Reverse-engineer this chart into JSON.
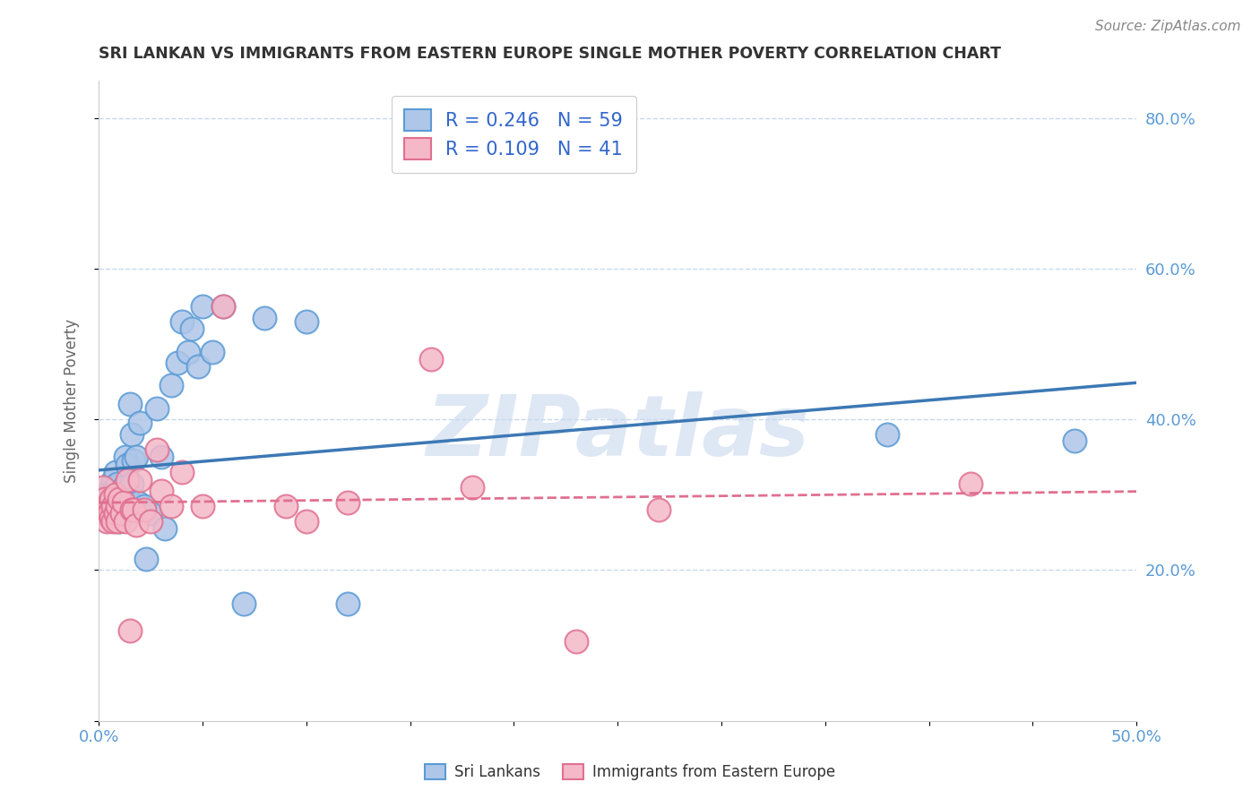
{
  "title": "SRI LANKAN VS IMMIGRANTS FROM EASTERN EUROPE SINGLE MOTHER POVERTY CORRELATION CHART",
  "source": "Source: ZipAtlas.com",
  "ylabel": "Single Mother Poverty",
  "xlim": [
    0.0,
    0.5
  ],
  "ylim": [
    0.0,
    0.85
  ],
  "xticks": [
    0.0,
    0.05,
    0.1,
    0.15,
    0.2,
    0.25,
    0.3,
    0.35,
    0.4,
    0.45,
    0.5
  ],
  "xticklabels_show": {
    "0.0": "0.0%",
    "0.50": "50.0%"
  },
  "yticks_right": [
    0.2,
    0.4,
    0.6,
    0.8
  ],
  "yticklabels_right": [
    "20.0%",
    "40.0%",
    "60.0%",
    "80.0%"
  ],
  "R_sri": 0.246,
  "N_sri": 59,
  "R_east": 0.109,
  "N_east": 41,
  "blue_fill": "#aec6e8",
  "blue_edge": "#5b9bd5",
  "pink_fill": "#f4b8c8",
  "pink_edge": "#e07090",
  "blue_line": "#3c78b4",
  "pink_line": "#e07090",
  "axis_label_color": "#5b9bd5",
  "watermark_color": "#c8d8ee",
  "sri_x": [
    0.002,
    0.003,
    0.003,
    0.004,
    0.004,
    0.005,
    0.005,
    0.005,
    0.006,
    0.006,
    0.006,
    0.007,
    0.007,
    0.007,
    0.008,
    0.008,
    0.008,
    0.009,
    0.009,
    0.01,
    0.01,
    0.01,
    0.011,
    0.011,
    0.012,
    0.012,
    0.013,
    0.013,
    0.014,
    0.014,
    0.015,
    0.015,
    0.016,
    0.016,
    0.017,
    0.018,
    0.019,
    0.02,
    0.022,
    0.023,
    0.025,
    0.028,
    0.03,
    0.032,
    0.035,
    0.038,
    0.04,
    0.043,
    0.045,
    0.048,
    0.05,
    0.055,
    0.06,
    0.07,
    0.08,
    0.1,
    0.12,
    0.38,
    0.47
  ],
  "sri_y": [
    0.285,
    0.29,
    0.275,
    0.295,
    0.28,
    0.3,
    0.285,
    0.27,
    0.31,
    0.295,
    0.275,
    0.32,
    0.305,
    0.28,
    0.33,
    0.31,
    0.285,
    0.315,
    0.29,
    0.295,
    0.28,
    0.265,
    0.3,
    0.285,
    0.31,
    0.29,
    0.35,
    0.295,
    0.34,
    0.305,
    0.42,
    0.28,
    0.38,
    0.315,
    0.345,
    0.35,
    0.29,
    0.395,
    0.285,
    0.215,
    0.275,
    0.415,
    0.35,
    0.255,
    0.445,
    0.475,
    0.53,
    0.49,
    0.52,
    0.47,
    0.55,
    0.49,
    0.55,
    0.155,
    0.535,
    0.53,
    0.155,
    0.38,
    0.372
  ],
  "east_x": [
    0.002,
    0.003,
    0.003,
    0.004,
    0.004,
    0.005,
    0.005,
    0.006,
    0.006,
    0.007,
    0.007,
    0.008,
    0.008,
    0.009,
    0.009,
    0.01,
    0.011,
    0.012,
    0.013,
    0.014,
    0.015,
    0.016,
    0.017,
    0.018,
    0.02,
    0.022,
    0.025,
    0.028,
    0.03,
    0.035,
    0.04,
    0.05,
    0.06,
    0.09,
    0.1,
    0.12,
    0.16,
    0.18,
    0.23,
    0.27,
    0.42
  ],
  "east_y": [
    0.31,
    0.295,
    0.275,
    0.285,
    0.265,
    0.29,
    0.275,
    0.295,
    0.27,
    0.285,
    0.265,
    0.3,
    0.275,
    0.285,
    0.265,
    0.295,
    0.275,
    0.29,
    0.265,
    0.32,
    0.12,
    0.28,
    0.28,
    0.26,
    0.32,
    0.28,
    0.265,
    0.36,
    0.305,
    0.285,
    0.33,
    0.285,
    0.55,
    0.285,
    0.265,
    0.29,
    0.48,
    0.31,
    0.105,
    0.28,
    0.315
  ]
}
